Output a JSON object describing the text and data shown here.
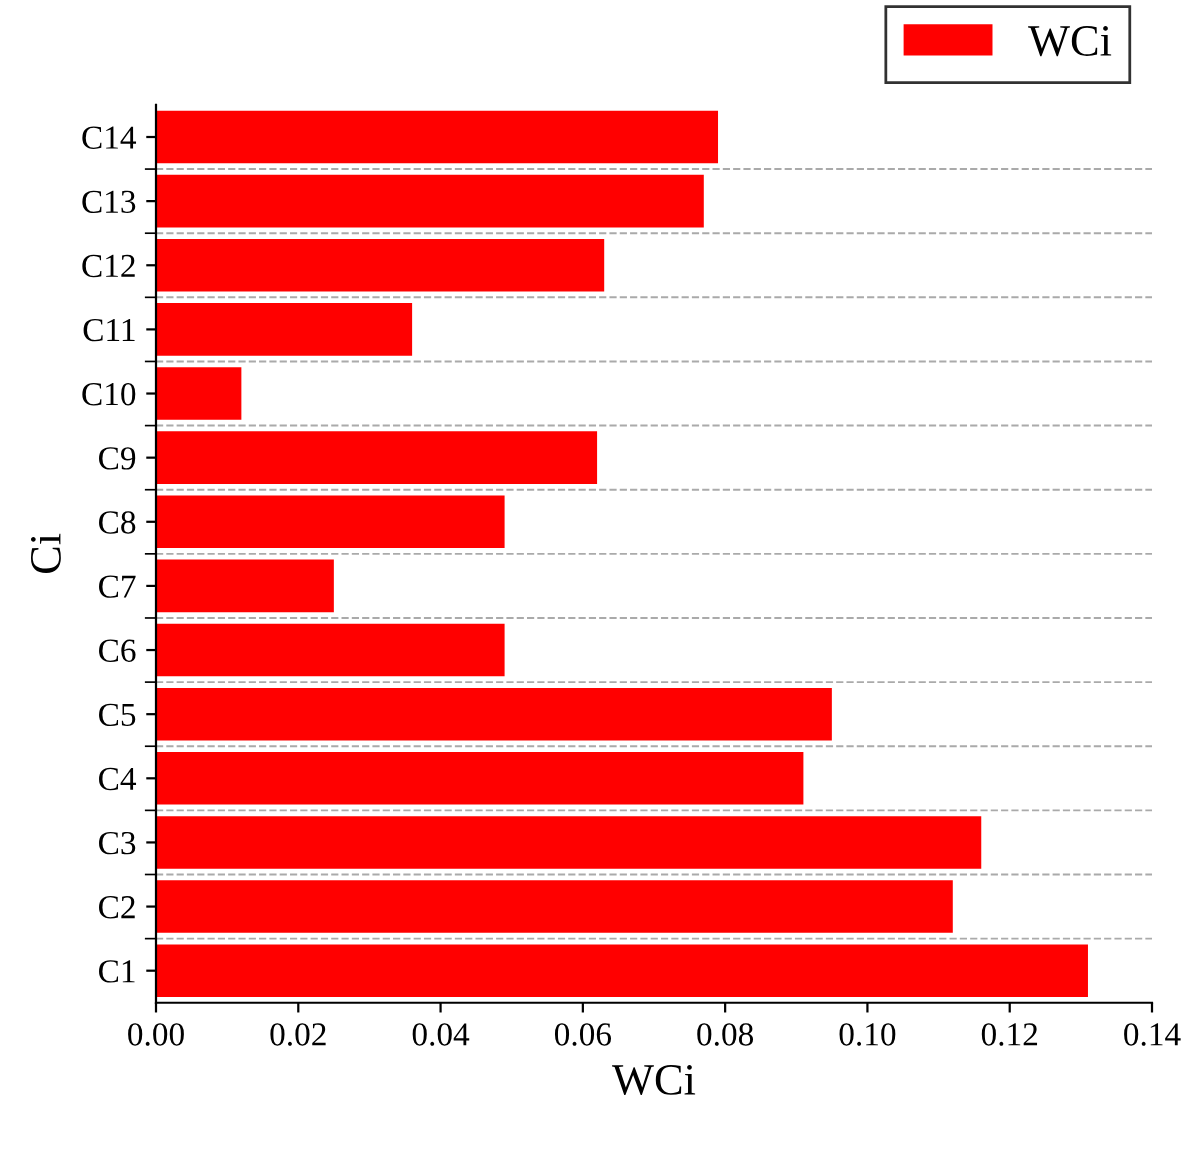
{
  "chart_data": {
    "type": "bar",
    "orientation": "horizontal",
    "xlabel": "WCi",
    "ylabel": "Ci",
    "categories": [
      "C14",
      "C13",
      "C12",
      "C11",
      "C10",
      "C9",
      "C8",
      "C7",
      "C6",
      "C5",
      "C4",
      "C3",
      "C2",
      "C1"
    ],
    "series": [
      {
        "name": "WCi",
        "color": "#ff0000",
        "values": [
          0.079,
          0.077,
          0.063,
          0.036,
          0.012,
          0.062,
          0.049,
          0.025,
          0.049,
          0.095,
          0.091,
          0.116,
          0.112,
          0.131
        ]
      }
    ],
    "xlim": [
      0,
      0.14
    ],
    "xticks": [
      {
        "value": 0,
        "label": "0.00"
      },
      0.02,
      0.04,
      0.06,
      0.08,
      {
        "value": 0.1,
        "label": "0.10"
      },
      0.12,
      0.14
    ],
    "grid": "y",
    "legend": "top right"
  }
}
